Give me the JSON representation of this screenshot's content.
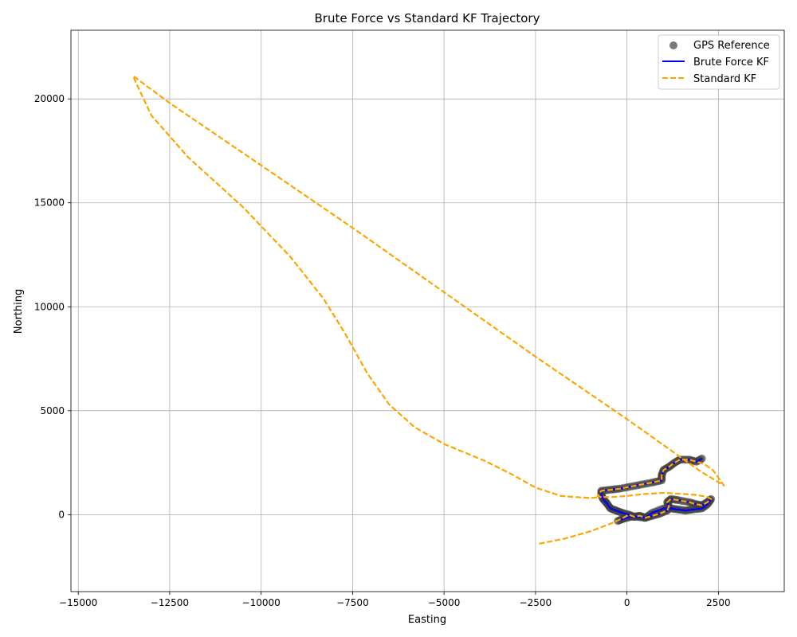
{
  "chart_data": {
    "type": "line",
    "title": "Brute Force vs Standard KF Trajectory",
    "xlabel": "Easting",
    "ylabel": "Northing",
    "xlim": [
      -15200,
      4300
    ],
    "ylim": [
      -3700,
      23300
    ],
    "xticks": [
      -15000,
      -12500,
      -10000,
      -7500,
      -5000,
      -2500,
      0,
      2500
    ],
    "yticks": [
      0,
      5000,
      10000,
      15000,
      20000
    ],
    "xtick_labels": [
      "−15000",
      "−12500",
      "−10000",
      "−7500",
      "−5000",
      "−2500",
      "0",
      "2500"
    ],
    "ytick_labels": [
      "0",
      "5000",
      "10000",
      "15000",
      "20000"
    ],
    "grid": true,
    "legend_position": "top-right",
    "legend": [
      "GPS Reference",
      "Brute Force KF",
      "Standard KF"
    ],
    "colors": {
      "gps": "#404040",
      "brute": "#0000ff",
      "standard": "#ffa500"
    },
    "gps_reference_track": [
      [
        2050,
        2700
      ],
      [
        1900,
        2550
      ],
      [
        1700,
        2650
      ],
      [
        1450,
        2650
      ],
      [
        1300,
        2500
      ],
      [
        1150,
        2300
      ],
      [
        1000,
        2150
      ],
      [
        950,
        1900
      ],
      [
        950,
        1650
      ],
      [
        700,
        1550
      ],
      [
        400,
        1450
      ],
      [
        100,
        1350
      ],
      [
        -200,
        1250
      ],
      [
        -450,
        1200
      ],
      [
        -700,
        1150
      ],
      [
        -700,
        950
      ],
      [
        -650,
        750
      ],
      [
        -550,
        550
      ],
      [
        -450,
        300
      ],
      [
        -300,
        200
      ],
      [
        -150,
        100
      ],
      [
        50,
        0
      ],
      [
        200,
        -100
      ],
      [
        350,
        -50
      ],
      [
        500,
        -150
      ],
      [
        700,
        -50
      ],
      [
        900,
        50
      ],
      [
        1100,
        200
      ],
      [
        1150,
        400
      ],
      [
        1100,
        600
      ],
      [
        1200,
        750
      ],
      [
        1400,
        700
      ],
      [
        1700,
        600
      ],
      [
        1900,
        500
      ],
      [
        2050,
        450
      ],
      [
        2200,
        600
      ],
      [
        2300,
        750
      ],
      [
        2200,
        500
      ],
      [
        2050,
        300
      ],
      [
        1800,
        250
      ],
      [
        1600,
        200
      ],
      [
        1400,
        250
      ],
      [
        1200,
        300
      ],
      [
        1000,
        300
      ],
      [
        700,
        100
      ],
      [
        500,
        -150
      ],
      [
        300,
        -100
      ],
      [
        100,
        -100
      ],
      [
        -100,
        -200
      ],
      [
        -250,
        -300
      ]
    ],
    "series": [
      {
        "name": "Brute Force KF",
        "key": "brute",
        "style": "solid",
        "points": [
          [
            2050,
            2700
          ],
          [
            1900,
            2550
          ],
          [
            1700,
            2650
          ],
          [
            1450,
            2650
          ],
          [
            1300,
            2500
          ],
          [
            1150,
            2300
          ],
          [
            1000,
            2150
          ],
          [
            950,
            1900
          ],
          [
            950,
            1650
          ],
          [
            700,
            1550
          ],
          [
            400,
            1450
          ],
          [
            100,
            1350
          ],
          [
            -200,
            1250
          ],
          [
            -450,
            1200
          ],
          [
            -700,
            1150
          ],
          [
            -700,
            950
          ],
          [
            -650,
            750
          ],
          [
            -550,
            550
          ],
          [
            -450,
            300
          ],
          [
            -300,
            200
          ],
          [
            -150,
            100
          ],
          [
            50,
            0
          ],
          [
            200,
            -100
          ],
          [
            350,
            -50
          ],
          [
            500,
            -150
          ],
          [
            700,
            -50
          ],
          [
            900,
            50
          ],
          [
            1100,
            200
          ],
          [
            1150,
            400
          ],
          [
            1100,
            600
          ],
          [
            1200,
            750
          ],
          [
            1400,
            700
          ],
          [
            1700,
            600
          ],
          [
            1900,
            500
          ],
          [
            2050,
            450
          ],
          [
            2200,
            600
          ],
          [
            2300,
            750
          ],
          [
            2200,
            500
          ],
          [
            2050,
            300
          ],
          [
            1800,
            250
          ],
          [
            1600,
            200
          ],
          [
            1400,
            250
          ],
          [
            1200,
            300
          ],
          [
            1000,
            300
          ],
          [
            700,
            100
          ],
          [
            500,
            -150
          ],
          [
            300,
            -100
          ],
          [
            100,
            -100
          ],
          [
            -100,
            -200
          ],
          [
            -250,
            -300
          ]
        ]
      },
      {
        "name": "Standard KF",
        "key": "standard",
        "style": "dashed",
        "points": [
          [
            -2400,
            -1400
          ],
          [
            -1700,
            -1150
          ],
          [
            -1000,
            -800
          ],
          [
            -400,
            -400
          ],
          [
            -150,
            -200
          ],
          [
            50,
            0
          ],
          [
            200,
            -100
          ],
          [
            350,
            -50
          ],
          [
            500,
            -150
          ],
          [
            700,
            -50
          ],
          [
            900,
            50
          ],
          [
            1100,
            200
          ],
          [
            1150,
            400
          ],
          [
            1100,
            600
          ],
          [
            1200,
            750
          ],
          [
            1400,
            700
          ],
          [
            1700,
            600
          ],
          [
            1900,
            500
          ],
          [
            2050,
            450
          ],
          [
            2200,
            600
          ],
          [
            2300,
            750
          ],
          [
            2200,
            850
          ],
          [
            1900,
            950
          ],
          [
            1500,
            1000
          ],
          [
            1000,
            1050
          ],
          [
            500,
            1000
          ],
          [
            0,
            900
          ],
          [
            -400,
            850
          ],
          [
            -700,
            850
          ],
          [
            -800,
            900
          ],
          [
            -700,
            1150
          ],
          [
            -450,
            1200
          ],
          [
            -200,
            1250
          ],
          [
            100,
            1350
          ],
          [
            400,
            1450
          ],
          [
            700,
            1550
          ],
          [
            950,
            1650
          ],
          [
            950,
            1900
          ],
          [
            1000,
            2150
          ],
          [
            1150,
            2300
          ],
          [
            1300,
            2500
          ],
          [
            1450,
            2650
          ],
          [
            1700,
            2650
          ],
          [
            1900,
            2550
          ],
          [
            2100,
            2450
          ],
          [
            2350,
            2150
          ],
          [
            2650,
            1400
          ],
          [
            2000,
            2100
          ],
          [
            0,
            4600
          ],
          [
            -2500,
            7600
          ],
          [
            -5000,
            10700
          ],
          [
            -7500,
            13800
          ],
          [
            -10000,
            16800
          ],
          [
            -12500,
            19800
          ],
          [
            -13500,
            21100
          ],
          [
            -13400,
            20700
          ],
          [
            -13000,
            19200
          ],
          [
            -12000,
            17200
          ],
          [
            -10500,
            14800
          ],
          [
            -9200,
            12400
          ],
          [
            -8300,
            10400
          ],
          [
            -7700,
            8700
          ],
          [
            -7100,
            6800
          ],
          [
            -6500,
            5300
          ],
          [
            -5800,
            4200
          ],
          [
            -5000,
            3400
          ],
          [
            -3900,
            2600
          ],
          [
            -3100,
            1900
          ],
          [
            -2500,
            1300
          ],
          [
            -1800,
            900
          ],
          [
            -1000,
            800
          ],
          [
            -700,
            850
          ]
        ]
      }
    ]
  }
}
